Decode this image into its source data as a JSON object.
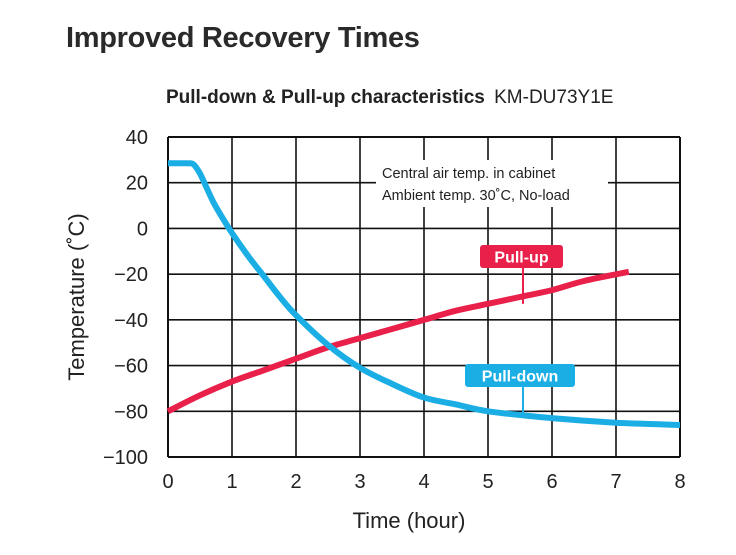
{
  "header": {
    "title": "Improved Recovery Times",
    "subtitle_bold": "Pull-down & Pull-up characteristics",
    "model": "KM-DU73Y1E"
  },
  "colors": {
    "pull_up": "#e8204a",
    "pull_down": "#1aaee5",
    "grid": "#111111"
  },
  "chart_data": {
    "type": "line",
    "xlabel": "Time (hour)",
    "ylabel": "Temperature (˚C)",
    "xlim": [
      0,
      8
    ],
    "ylim": [
      -100,
      40
    ],
    "x_ticks": [
      "0",
      "1",
      "2",
      "3",
      "4",
      "5",
      "6",
      "7",
      "8"
    ],
    "y_ticks": [
      "40",
      "20",
      "0",
      "−20",
      "−40",
      "−60",
      "−80",
      "−100"
    ],
    "grid": true,
    "annotation_lines": [
      "Central air temp. in cabinet",
      "Ambient temp. 30˚C, No-load"
    ],
    "series": [
      {
        "name": "Pull-up",
        "color": "#e8204a",
        "points": [
          [
            0,
            -80
          ],
          [
            0.5,
            -73
          ],
          [
            1,
            -67
          ],
          [
            1.5,
            -62
          ],
          [
            2,
            -57
          ],
          [
            2.5,
            -52
          ],
          [
            3,
            -48
          ],
          [
            3.5,
            -44
          ],
          [
            4,
            -40
          ],
          [
            4.5,
            -36
          ],
          [
            5,
            -33
          ],
          [
            5.5,
            -30
          ],
          [
            6,
            -27
          ],
          [
            6.5,
            -23
          ],
          [
            7.2,
            -19
          ]
        ]
      },
      {
        "name": "Pull-down",
        "color": "#1aaee5",
        "points": [
          [
            0,
            28.5
          ],
          [
            0.3,
            28.5
          ],
          [
            0.4,
            28
          ],
          [
            0.5,
            24
          ],
          [
            0.6,
            18
          ],
          [
            0.7,
            12
          ],
          [
            0.8,
            7
          ],
          [
            1,
            -2
          ],
          [
            1.25,
            -12
          ],
          [
            1.5,
            -21
          ],
          [
            1.75,
            -30
          ],
          [
            2,
            -38
          ],
          [
            2.5,
            -51
          ],
          [
            3,
            -61
          ],
          [
            3.5,
            -68
          ],
          [
            4,
            -74
          ],
          [
            4.5,
            -77
          ],
          [
            5,
            -80
          ],
          [
            6,
            -83
          ],
          [
            7,
            -85
          ],
          [
            8,
            -86
          ]
        ]
      }
    ]
  }
}
